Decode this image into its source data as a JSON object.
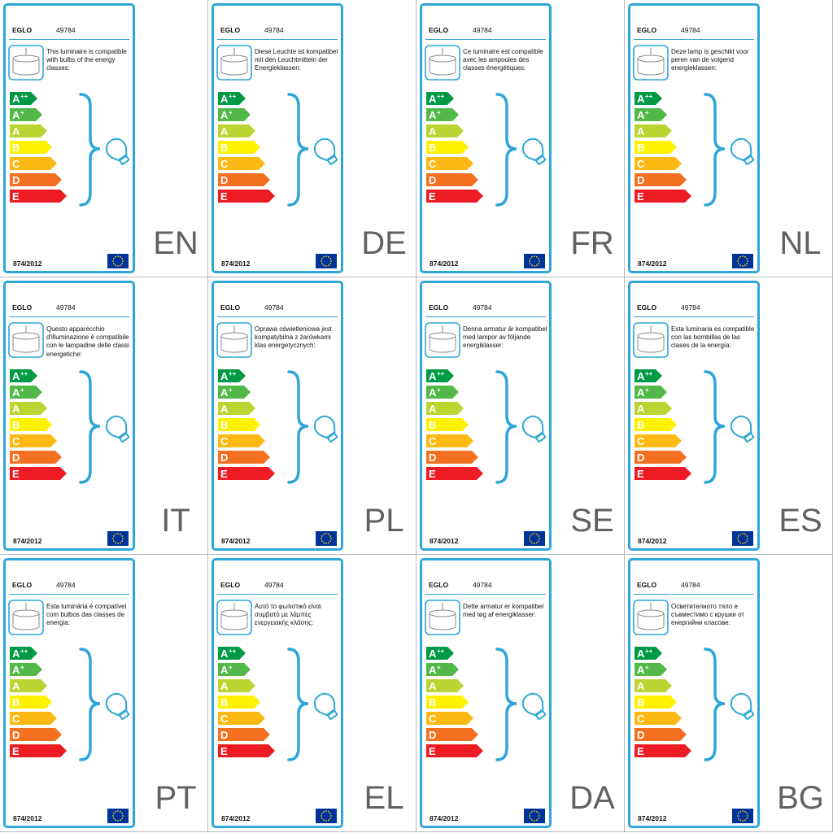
{
  "brand": "EGLO",
  "model": "49784",
  "regulation": "874/2012",
  "colors": {
    "frame": "#2ea6d9",
    "bulb": "#2ea6d9",
    "classes": [
      "#009a44",
      "#52b848",
      "#bcd431",
      "#fff200",
      "#fdb913",
      "#f37021",
      "#ed1c24"
    ],
    "eu_flag": "#003399",
    "eu_stars": "#ffcc00"
  },
  "icons": [
    "pendant-lamp-icon",
    "brace-icon",
    "bulb-icon",
    "eu-flag-icon"
  ],
  "energy_classes": [
    {
      "letter": "A",
      "sup": "++"
    },
    {
      "letter": "A",
      "sup": "+"
    },
    {
      "letter": "A",
      "sup": ""
    },
    {
      "letter": "B",
      "sup": ""
    },
    {
      "letter": "C",
      "sup": ""
    },
    {
      "letter": "D",
      "sup": ""
    },
    {
      "letter": "E",
      "sup": ""
    }
  ],
  "labels": [
    {
      "code": "EN",
      "text": "This luminaire is compatible with bulbs of the energy classes:"
    },
    {
      "code": "DE",
      "text": "Diese Leuchte ist kompatibel mit den Leuchtmitteln der Energieklassen:"
    },
    {
      "code": "FR",
      "text": "Ce luminaire est compatible avec les ampoules des classes énergétiques:"
    },
    {
      "code": "NL",
      "text": "Deze lamp is geschikt voor peren van de volgend energieklassen:"
    },
    {
      "code": "IT",
      "text": "Questo apparecchio d'illuminazione è compatibile con le lampadine delle classi energetiche:"
    },
    {
      "code": "PL",
      "text": "Oprawa oświetleniowa jest kompatybilna z żarówkami klas energetycznych:"
    },
    {
      "code": "SE",
      "text": "Denna armatur är kompatibel med lampor av följande energiklasser:"
    },
    {
      "code": "ES",
      "text": "Esta luminaria es compatible con las bombillas de las clases de la energía:"
    },
    {
      "code": "PT",
      "text": "Esta luminária é compatível com bulbos das classes de energia:"
    },
    {
      "code": "EL",
      "text": "Αυτό το φωτιστικό είναι συμβατό με λάμπες ενεργειακής κλάσης:"
    },
    {
      "code": "DA",
      "text": "Dette armatur er kompatibel med løg af energiklasser:"
    },
    {
      "code": "BG",
      "text": "Осветителното тяло е съвместимо с крушки от енергийни класове:"
    }
  ]
}
